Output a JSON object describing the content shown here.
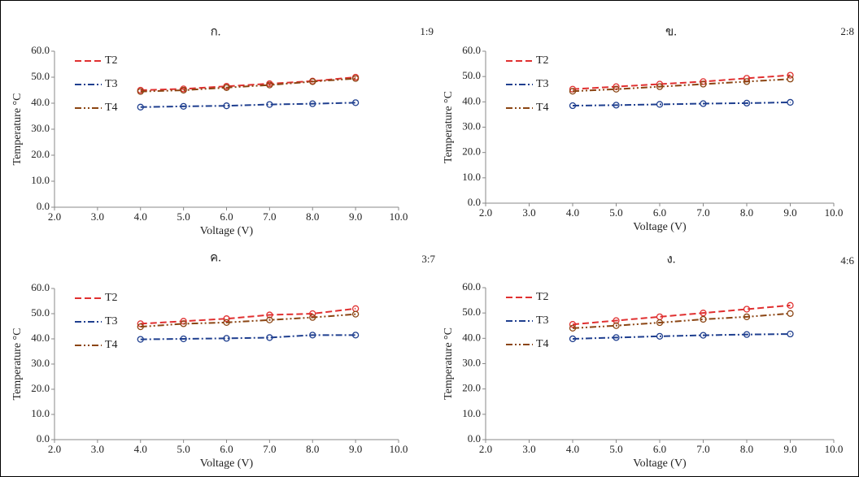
{
  "chart_data": [
    {
      "type": "line",
      "title": "ก.",
      "subtitle": "1:9",
      "x_label": "Voltage (V)",
      "y_label": "Temperature °C",
      "x": [
        4,
        5,
        6,
        7,
        8,
        9
      ],
      "xlim": [
        2,
        10
      ],
      "xticks": [
        {
          "value": 2,
          "label": "2.0"
        },
        {
          "value": 3,
          "label": "3.0"
        },
        {
          "value": 4,
          "label": "4.0"
        },
        {
          "value": 5,
          "label": "5.0"
        },
        {
          "value": 6,
          "label": "6.0"
        },
        {
          "value": 7,
          "label": "7.0"
        },
        {
          "value": 8,
          "label": "8.0"
        },
        {
          "value": 9,
          "label": "9.0"
        },
        {
          "value": 10,
          "label": "10.0"
        }
      ],
      "ylim": [
        0,
        60
      ],
      "yticks": [
        {
          "value": 0,
          "label": "0.0"
        },
        {
          "value": 10,
          "label": "10.0"
        },
        {
          "value": 20,
          "label": "20.0"
        },
        {
          "value": 30,
          "label": "30.0"
        },
        {
          "value": 40,
          "label": "40.0"
        },
        {
          "value": 50,
          "label": "50.0"
        },
        {
          "value": 60,
          "label": "60.0"
        }
      ],
      "series": [
        {
          "name": "T2",
          "color": "#e03030",
          "values": [
            45,
            45.5,
            46.5,
            47.5,
            48.5,
            50
          ]
        },
        {
          "name": "T3",
          "color": "#1f3f8f",
          "values": [
            38.5,
            38.8,
            39,
            39.5,
            39.8,
            40.2
          ]
        },
        {
          "name": "T4",
          "color": "#8b4513",
          "values": [
            44.5,
            45,
            46,
            47,
            48.3,
            49.5
          ]
        }
      ]
    },
    {
      "type": "line",
      "title": "ข.",
      "subtitle": "2:8",
      "x_label": "Voltage (V)",
      "y_label": "Temperature °C",
      "x": [
        4,
        5,
        6,
        7,
        8,
        9
      ],
      "xlim": [
        2,
        10
      ],
      "xticks": [
        {
          "value": 2,
          "label": "2.0"
        },
        {
          "value": 3,
          "label": "3.0"
        },
        {
          "value": 4,
          "label": "4.0"
        },
        {
          "value": 5,
          "label": "5.0"
        },
        {
          "value": 6,
          "label": "6.0"
        },
        {
          "value": 7,
          "label": "7.0"
        },
        {
          "value": 8,
          "label": "8.0"
        },
        {
          "value": 9,
          "label": "9.0"
        },
        {
          "value": 10,
          "label": "10.0"
        }
      ],
      "ylim": [
        0,
        60
      ],
      "yticks": [
        {
          "value": 0,
          "label": "0.0"
        },
        {
          "value": 10,
          "label": "10.0"
        },
        {
          "value": 20,
          "label": "20.0"
        },
        {
          "value": 30,
          "label": "30.0"
        },
        {
          "value": 40,
          "label": "40.0"
        },
        {
          "value": 50,
          "label": "50.0"
        },
        {
          "value": 60,
          "label": "60.0"
        }
      ],
      "series": [
        {
          "name": "T2",
          "color": "#e03030",
          "values": [
            45,
            46,
            47,
            48,
            49.3,
            50.5
          ]
        },
        {
          "name": "T3",
          "color": "#1f3f8f",
          "values": [
            38.5,
            38.7,
            39,
            39.3,
            39.5,
            39.8
          ]
        },
        {
          "name": "T4",
          "color": "#8b4513",
          "values": [
            44.2,
            45,
            46,
            47,
            48,
            49
          ]
        }
      ]
    },
    {
      "type": "line",
      "title": "ค.",
      "subtitle": "3:7",
      "x_label": "Voltage (V)",
      "y_label": "Temperature °C",
      "x": [
        4,
        5,
        6,
        7,
        8,
        9
      ],
      "xlim": [
        2,
        10
      ],
      "xticks": [
        {
          "value": 2,
          "label": "2.0"
        },
        {
          "value": 3,
          "label": "3.0"
        },
        {
          "value": 4,
          "label": "4.0"
        },
        {
          "value": 5,
          "label": "5.0"
        },
        {
          "value": 6,
          "label": "6.0"
        },
        {
          "value": 7,
          "label": "7.0"
        },
        {
          "value": 8,
          "label": "8.0"
        },
        {
          "value": 9,
          "label": "9.0"
        },
        {
          "value": 10,
          "label": "10.0"
        }
      ],
      "ylim": [
        0,
        60
      ],
      "yticks": [
        {
          "value": 0,
          "label": "0.0"
        },
        {
          "value": 10,
          "label": "10.0"
        },
        {
          "value": 20,
          "label": "20.0"
        },
        {
          "value": 30,
          "label": "30.0"
        },
        {
          "value": 40,
          "label": "40.0"
        },
        {
          "value": 50,
          "label": "50.0"
        },
        {
          "value": 60,
          "label": "60.0"
        }
      ],
      "series": [
        {
          "name": "T2",
          "color": "#e03030",
          "values": [
            46,
            47,
            48,
            49.5,
            50,
            52
          ]
        },
        {
          "name": "T3",
          "color": "#1f3f8f",
          "values": [
            39.8,
            40,
            40.2,
            40.5,
            41.5,
            41.5
          ]
        },
        {
          "name": "T4",
          "color": "#8b4513",
          "values": [
            44.8,
            46,
            46.5,
            47.5,
            48.5,
            49.8
          ]
        }
      ]
    },
    {
      "type": "line",
      "title": "ง.",
      "subtitle": "4:6",
      "x_label": "Voltage (V)",
      "y_label": "Temperature °C",
      "x": [
        4,
        5,
        6,
        7,
        8,
        9
      ],
      "xlim": [
        2,
        10
      ],
      "xticks": [
        {
          "value": 2,
          "label": "2.0"
        },
        {
          "value": 3,
          "label": "3.0"
        },
        {
          "value": 4,
          "label": "4.0"
        },
        {
          "value": 5,
          "label": "5.0"
        },
        {
          "value": 6,
          "label": "6.0"
        },
        {
          "value": 7,
          "label": "7.0"
        },
        {
          "value": 8,
          "label": "8.0"
        },
        {
          "value": 9,
          "label": "9.0"
        },
        {
          "value": 10,
          "label": "10.0"
        }
      ],
      "ylim": [
        0,
        60
      ],
      "yticks": [
        {
          "value": 0,
          "label": "0.0"
        },
        {
          "value": 10,
          "label": "10.0"
        },
        {
          "value": 20,
          "label": "20.0"
        },
        {
          "value": 30,
          "label": "30.0"
        },
        {
          "value": 40,
          "label": "40.0"
        },
        {
          "value": 50,
          "label": "50.0"
        },
        {
          "value": 60,
          "label": "60.0"
        }
      ],
      "series": [
        {
          "name": "T2",
          "color": "#e03030",
          "values": [
            45.5,
            47,
            48.5,
            50,
            51.5,
            53
          ]
        },
        {
          "name": "T3",
          "color": "#1f3f8f",
          "values": [
            39.8,
            40.3,
            40.8,
            41.2,
            41.5,
            41.7
          ]
        },
        {
          "name": "T4",
          "color": "#8b4513",
          "values": [
            44,
            45,
            46.2,
            47.5,
            48.5,
            49.8
          ]
        }
      ]
    }
  ]
}
